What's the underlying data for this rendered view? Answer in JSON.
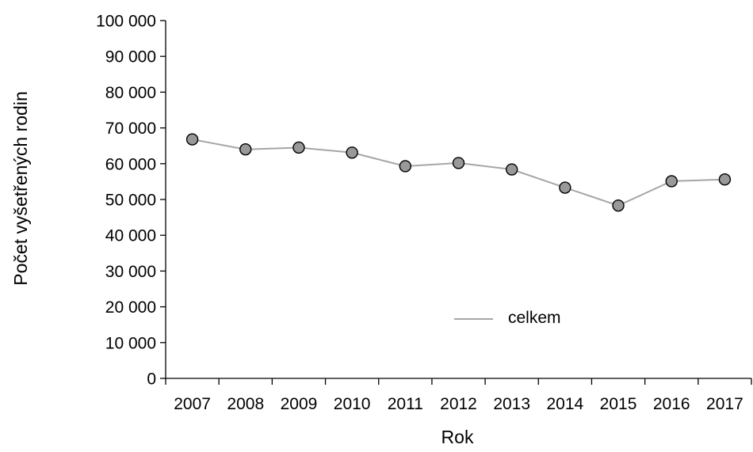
{
  "chart_data": {
    "type": "line",
    "xlabel": "Rok",
    "ylabel": "Počet vyšetřených rodin",
    "ylim": [
      0,
      100000
    ],
    "y_ticks": [
      "0",
      "10 000",
      "20 000",
      "30 000",
      "40 000",
      "50 000",
      "60 000",
      "70 000",
      "80 000",
      "90 000",
      "100 000"
    ],
    "categories": [
      "2007",
      "2008",
      "2009",
      "2010",
      "2011",
      "2012",
      "2013",
      "2014",
      "2015",
      "2016",
      "2017"
    ],
    "series": [
      {
        "name": "celkem",
        "values": [
          66800,
          64000,
          64500,
          63100,
          59300,
          60200,
          58400,
          53300,
          48300,
          55100,
          55600
        ],
        "line_color": "#a6a6a6",
        "marker_fill": "#999999",
        "marker_stroke": "#000000"
      }
    ],
    "legend_position": "lower-center",
    "grid": false
  }
}
